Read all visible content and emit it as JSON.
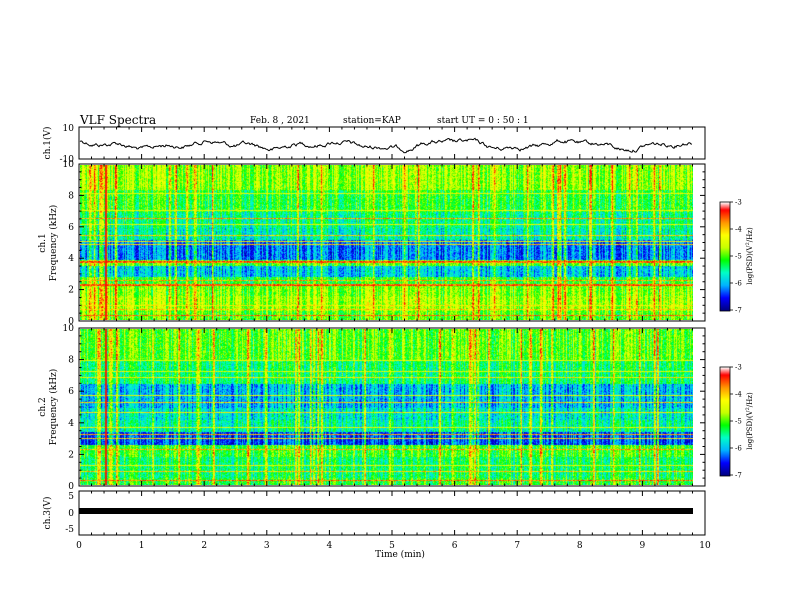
{
  "header": {
    "title": "VLF Spectra",
    "date": "Feb. 8  , 2021",
    "station": "station=KAP",
    "start_ut": "start  UT =   0  : 50 : 1"
  },
  "chart_data": [
    {
      "type": "line",
      "panel": "ch1-waveform",
      "ylabel": "ch.1(V)",
      "ylim": [
        -10,
        10
      ],
      "ytick_labels": [
        "10",
        "-10"
      ],
      "xlim": [
        0,
        10
      ]
    },
    {
      "type": "heatmap",
      "panel": "ch1-spectrogram",
      "ylabel": "ch.1\nFrequency (kHz)",
      "ylim": [
        0,
        10
      ],
      "ytick_labels": [
        "0",
        "2",
        "4",
        "6",
        "8",
        "10"
      ],
      "xlim": [
        0,
        10
      ],
      "colorbar": {
        "label": "log(PSD)(V²/Hz)",
        "range": [
          -7,
          -3
        ],
        "tick_labels": [
          "-3",
          "-4",
          "-5",
          "-6",
          "-7"
        ]
      }
    },
    {
      "type": "heatmap",
      "panel": "ch2-spectrogram",
      "ylabel": "ch.2\nFrequency (kHz)",
      "ylim": [
        0,
        10
      ],
      "ytick_labels": [
        "0",
        "2",
        "4",
        "6",
        "8",
        "10"
      ],
      "xlim": [
        0,
        10
      ],
      "colorbar": {
        "label": "log(PSD)(V²/Hz)",
        "range": [
          -7,
          -3
        ],
        "tick_labels": [
          "-3",
          "-4",
          "-5",
          "-6",
          "-7"
        ]
      }
    },
    {
      "type": "line",
      "panel": "ch3-waveform",
      "ylabel": "ch.3(V)",
      "ylim": [
        -5,
        5
      ],
      "ytick_labels": [
        "5",
        "0",
        "-5"
      ],
      "xlim": [
        0,
        10
      ]
    }
  ],
  "x_axis": {
    "label": "Time (min)",
    "tick_labels": [
      "0",
      "1",
      "2",
      "3",
      "4",
      "5",
      "6",
      "7",
      "8",
      "9",
      "10"
    ]
  },
  "colors": {
    "colormap": [
      "#000080",
      "#0000ff",
      "#00b4ff",
      "#00ffc8",
      "#00ff00",
      "#c8ff00",
      "#ffff00",
      "#ff9600",
      "#ff0000",
      "#ffffff"
    ]
  }
}
